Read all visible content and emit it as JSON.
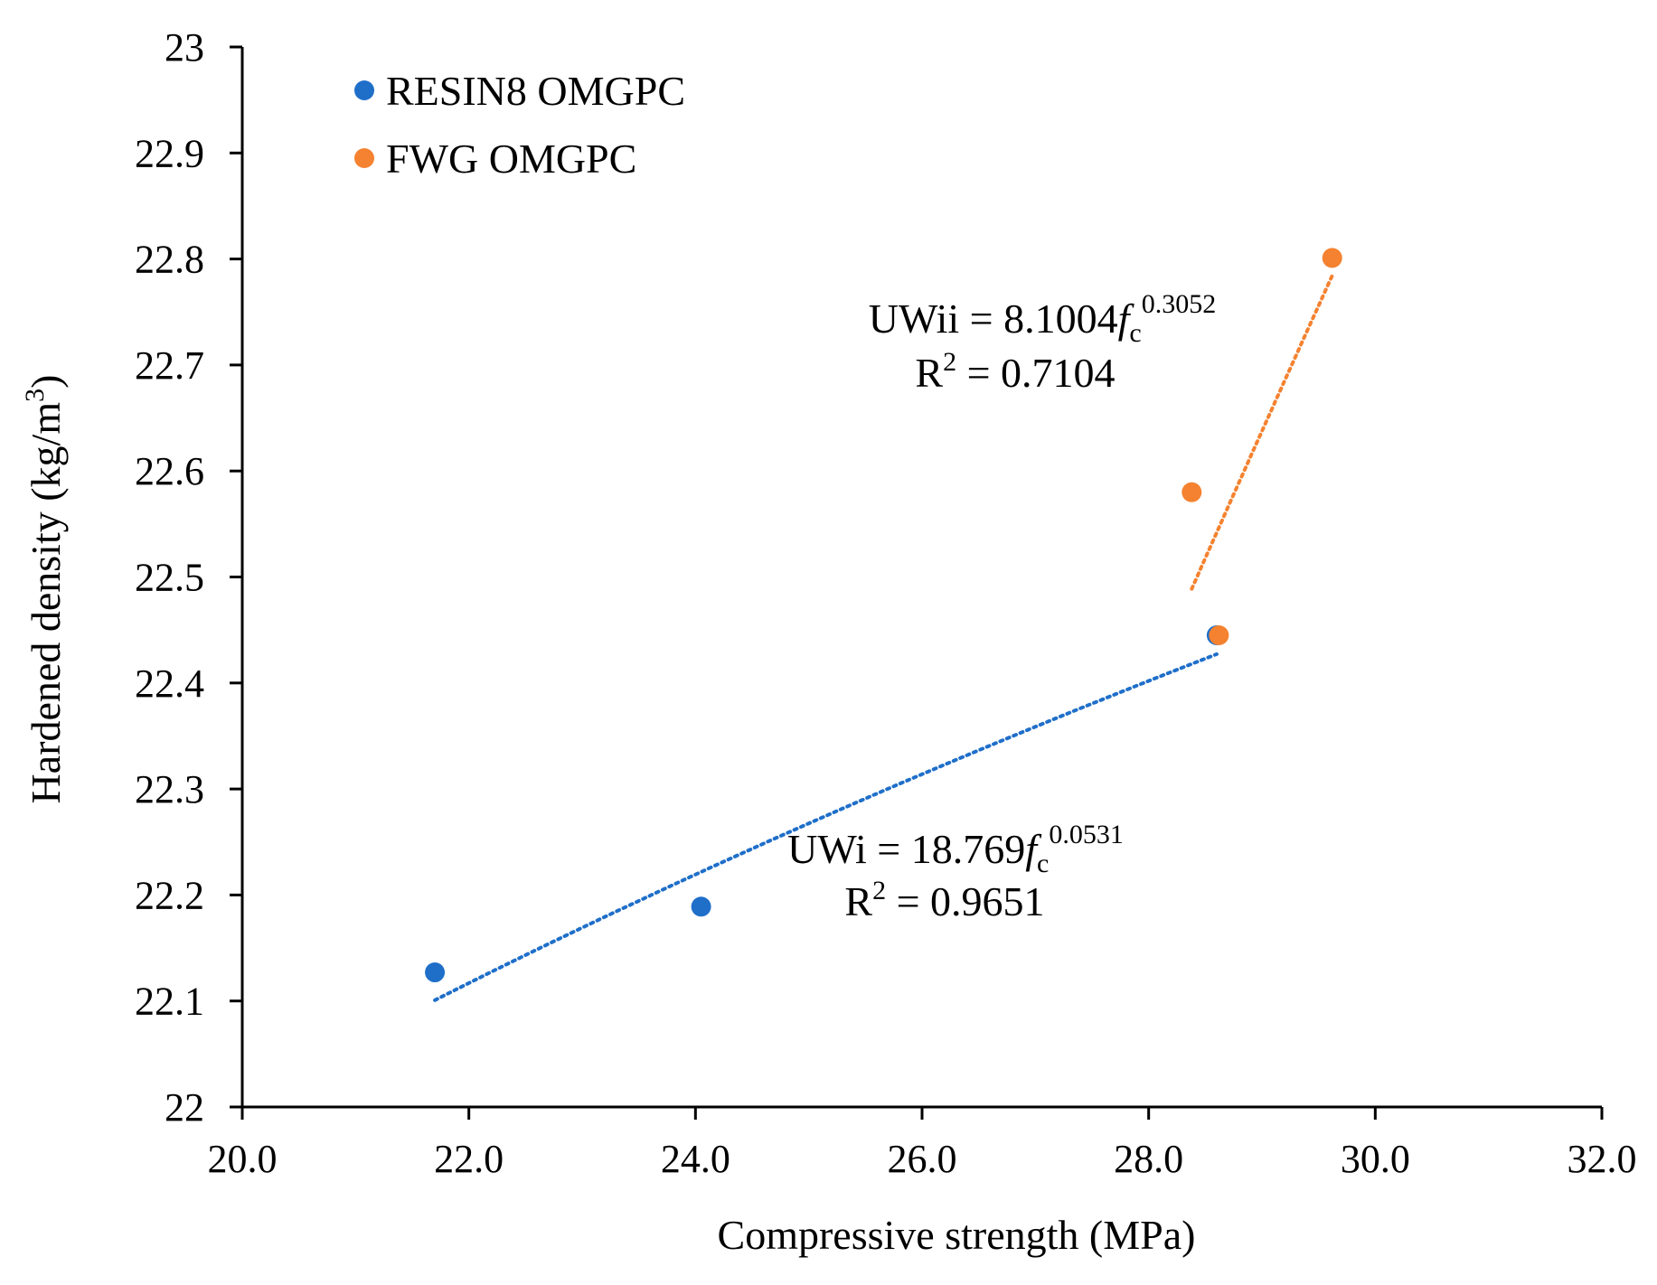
{
  "chart_data": {
    "type": "scatter",
    "title": "",
    "xlabel": "Compressive strength (MPa)",
    "ylabel": "Hardened density (kg/m",
    "ylabel_sup": "3",
    "ylabel_close": ")",
    "xlim": [
      20.0,
      32.0
    ],
    "ylim": [
      22.0,
      23.0
    ],
    "x_ticks": [
      "20.0",
      "22.0",
      "24.0",
      "26.0",
      "28.0",
      "30.0",
      "32.0"
    ],
    "y_ticks": [
      "22",
      "22.1",
      "22.2",
      "22.3",
      "22.4",
      "22.5",
      "22.6",
      "22.7",
      "22.8",
      "22.9",
      "23"
    ],
    "grid": false,
    "legend_position": "top-left",
    "series": [
      {
        "name": "RESIN8 OMGPC",
        "color": "#1f6fc9",
        "points": [
          [
            21.7,
            22.127
          ],
          [
            24.05,
            22.189
          ],
          [
            28.6,
            22.445
          ]
        ],
        "trendline": {
          "style": "dotted",
          "x_range": [
            21.7,
            28.6
          ],
          "a": 18.769,
          "b": 0.0531,
          "eq_lhs": "UWi = 18.769",
          "eq_var": "f",
          "eq_sub": "c",
          "eq_exp": "0.0531",
          "r2_prefix": "R",
          "r2_sup": "2",
          "r2_value": " = 0.9651"
        }
      },
      {
        "name": "FWG OMGPC",
        "color": "#f58230",
        "points": [
          [
            28.38,
            22.58
          ],
          [
            28.62,
            22.445
          ],
          [
            29.62,
            22.801
          ]
        ],
        "trendline": {
          "style": "dotted",
          "x_range": [
            28.38,
            29.62
          ],
          "a": 8.1004,
          "b": 0.3052,
          "eq_lhs": "UWii = 8.1004",
          "eq_var": "f",
          "eq_sub": "c",
          "eq_exp": "0.3052",
          "r2_prefix": "R",
          "r2_sup": "2",
          "r2_value": " = 0.7104"
        }
      }
    ]
  }
}
